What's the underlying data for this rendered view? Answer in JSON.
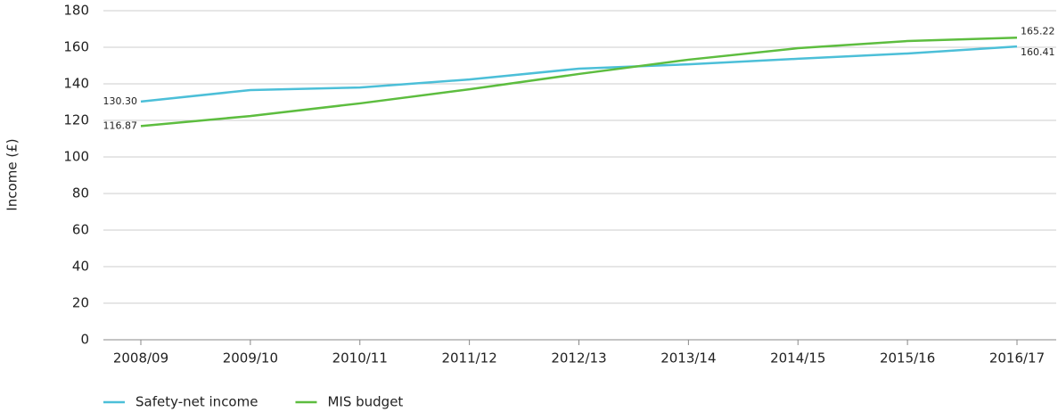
{
  "chart_data": {
    "type": "line",
    "y_label": "Income (£)",
    "categories": [
      "2008/09",
      "2009/10",
      "2010/11",
      "2011/12",
      "2012/13",
      "2013/14",
      "2014/15",
      "2015/16",
      "2016/17"
    ],
    "series": [
      {
        "name": "Safety-net income",
        "color": "#4cbfd8",
        "values": [
          130.3,
          136.6,
          138,
          142.4,
          148.3,
          150.7,
          153.7,
          156.6,
          160.41
        ],
        "value_labels": [
          "130.30",
          null,
          null,
          null,
          null,
          null,
          null,
          null,
          "160.41"
        ]
      },
      {
        "name": "MIS budget",
        "color": "#5dbd3f",
        "values": [
          116.87,
          122.4,
          129.3,
          137,
          145.4,
          153.2,
          159.5,
          163.4,
          165.22
        ],
        "value_labels": [
          "116.87",
          null,
          null,
          null,
          null,
          null,
          null,
          null,
          "165.22"
        ]
      }
    ],
    "ylim": [
      0,
      180
    ],
    "yticks": [
      0,
      20,
      40,
      60,
      80,
      100,
      120,
      140,
      160,
      180
    ],
    "grid": true,
    "legend": "bottom-left"
  }
}
